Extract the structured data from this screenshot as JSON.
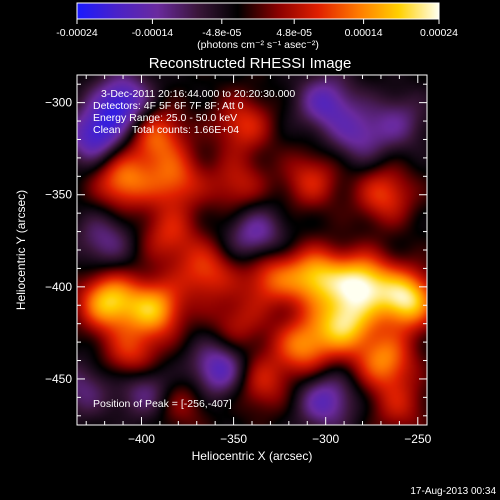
{
  "chart_data": {
    "type": "heatmap",
    "title": "Reconstructed RHESSI Image",
    "xlabel": "Heliocentric X (arcsec)",
    "ylabel": "Heliocentric Y (arcsec)",
    "xlim": [
      -435,
      -245
    ],
    "ylim": [
      -475,
      -285
    ],
    "x_ticks": [
      -400,
      -350,
      -300,
      -250
    ],
    "y_ticks": [
      -300,
      -350,
      -400,
      -450
    ],
    "colorbar": {
      "range": [
        -0.00024,
        0.00024
      ],
      "ticks": [
        {
          "value": -0.00024,
          "label": "-0.00024"
        },
        {
          "value": -0.00014,
          "label": "-0.00014"
        },
        {
          "value": -4.8e-05,
          "label": "-4.8e-05"
        },
        {
          "value": 4.8e-05,
          "label": "4.8e-05"
        },
        {
          "value": 0.00014,
          "label": "0.00014"
        },
        {
          "value": 0.00024,
          "label": "0.00024"
        }
      ],
      "unit_label": "(photons cm⁻² s⁻¹ asec⁻²)",
      "colormap": [
        "#1a1aff",
        "#4a22c8",
        "#6a2a9e",
        "#3a163a",
        "#000000",
        "#8a0000",
        "#e02000",
        "#ff7a00",
        "#ffd000",
        "#fffff0"
      ]
    },
    "annotations": {
      "time": "3-Dec-2011 20:16:44.000 to 20:20:30.000",
      "detectors": "Detectors: 4F 5F 6F 7F 8F; Att 0",
      "energy": "Energy Range: 25.0 - 50.0 keV",
      "clean": "Clean    Total counts: 1.66E+04",
      "peak": "Position of Peak = [-256,-407]"
    },
    "blobs": [
      {
        "x": -392,
        "y": -318,
        "v": 0.00014
      },
      {
        "x": -410,
        "y": -342,
        "v": 0.00016
      },
      {
        "x": -382,
        "y": -342,
        "v": 0.00013
      },
      {
        "x": -345,
        "y": -312,
        "v": 0.00011
      },
      {
        "x": -348,
        "y": -345,
        "v": 9e-05
      },
      {
        "x": -308,
        "y": -342,
        "v": 0.0001
      },
      {
        "x": -268,
        "y": -350,
        "v": 0.00012
      },
      {
        "x": -385,
        "y": -372,
        "v": 0.0001
      },
      {
        "x": -365,
        "y": -392,
        "v": 0.00012
      },
      {
        "x": -418,
        "y": -408,
        "v": 0.00021
      },
      {
        "x": -393,
        "y": -412,
        "v": 0.00019
      },
      {
        "x": -405,
        "y": -438,
        "v": 0.00012
      },
      {
        "x": -330,
        "y": -395,
        "v": 0.00013
      },
      {
        "x": -305,
        "y": -395,
        "v": 0.0002
      },
      {
        "x": -280,
        "y": -398,
        "v": 0.00023
      },
      {
        "x": -256,
        "y": -407,
        "v": 0.00024
      },
      {
        "x": -290,
        "y": -420,
        "v": 0.00021
      },
      {
        "x": -312,
        "y": -432,
        "v": 0.00016
      },
      {
        "x": -268,
        "y": -440,
        "v": 0.00016
      },
      {
        "x": -335,
        "y": -452,
        "v": 0.0001
      },
      {
        "x": -260,
        "y": -465,
        "v": 8e-05
      },
      {
        "x": -378,
        "y": -462,
        "v": 7e-05
      },
      {
        "x": -348,
        "y": -420,
        "v": 8e-05
      },
      {
        "x": -410,
        "y": -300,
        "v": -0.00017
      },
      {
        "x": -425,
        "y": -318,
        "v": -0.00016
      },
      {
        "x": -300,
        "y": -300,
        "v": -0.00013
      },
      {
        "x": -282,
        "y": -318,
        "v": -0.0001
      },
      {
        "x": -338,
        "y": -372,
        "v": -0.00012
      },
      {
        "x": -420,
        "y": -375,
        "v": -9e-05
      },
      {
        "x": -358,
        "y": -445,
        "v": -0.00015
      },
      {
        "x": -300,
        "y": -462,
        "v": -0.00013
      },
      {
        "x": -398,
        "y": -455,
        "v": -0.00011
      },
      {
        "x": -260,
        "y": -310,
        "v": -8e-05
      },
      {
        "x": -432,
        "y": -455,
        "v": -8e-05
      }
    ]
  },
  "footer": {
    "date": "17-Aug-2013 00:34"
  }
}
